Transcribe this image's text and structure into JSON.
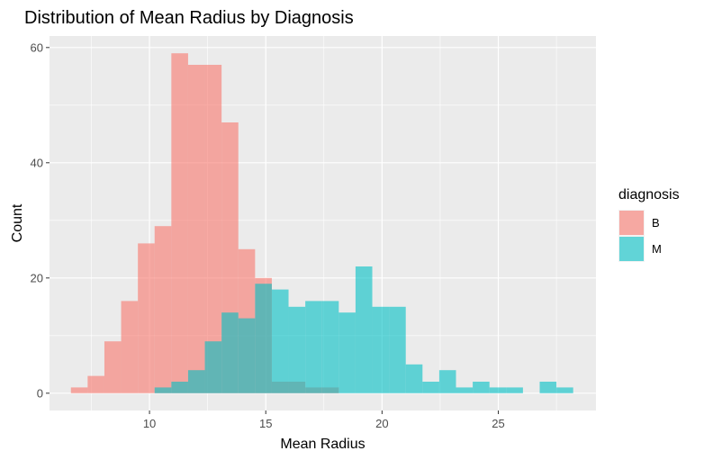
{
  "chart_data": {
    "type": "histogram",
    "title": "Distribution of Mean Radius by Diagnosis",
    "xlabel": "Mean Radius",
    "ylabel": "Count",
    "xlim": [
      5.7,
      29.2
    ],
    "ylim": [
      -3,
      62
    ],
    "x_ticks": [
      10,
      15,
      20,
      25
    ],
    "y_ticks": [
      0,
      20,
      40,
      60
    ],
    "grid": true,
    "bin_width": 0.72,
    "legend": {
      "title": "diagnosis",
      "position": "right"
    },
    "series": [
      {
        "name": "B",
        "color": "#F8766D",
        "opacity": 0.6,
        "bins": [
          {
            "x0": 6.62,
            "count": 1
          },
          {
            "x0": 7.34,
            "count": 3
          },
          {
            "x0": 8.06,
            "count": 9
          },
          {
            "x0": 8.78,
            "count": 16
          },
          {
            "x0": 9.5,
            "count": 26
          },
          {
            "x0": 10.22,
            "count": 29
          },
          {
            "x0": 10.94,
            "count": 59
          },
          {
            "x0": 11.66,
            "count": 57
          },
          {
            "x0": 12.38,
            "count": 57
          },
          {
            "x0": 13.1,
            "count": 47
          },
          {
            "x0": 13.82,
            "count": 25
          },
          {
            "x0": 14.54,
            "count": 20
          },
          {
            "x0": 15.26,
            "count": 2
          },
          {
            "x0": 15.98,
            "count": 2
          },
          {
            "x0": 16.7,
            "count": 1
          },
          {
            "x0": 17.42,
            "count": 1
          }
        ]
      },
      {
        "name": "M",
        "color": "#00BFC4",
        "opacity": 0.6,
        "bins": [
          {
            "x0": 10.22,
            "count": 1
          },
          {
            "x0": 10.94,
            "count": 2
          },
          {
            "x0": 11.66,
            "count": 4
          },
          {
            "x0": 12.38,
            "count": 9
          },
          {
            "x0": 13.1,
            "count": 14
          },
          {
            "x0": 13.82,
            "count": 13
          },
          {
            "x0": 14.54,
            "count": 19
          },
          {
            "x0": 15.26,
            "count": 18
          },
          {
            "x0": 15.98,
            "count": 15
          },
          {
            "x0": 16.7,
            "count": 16
          },
          {
            "x0": 17.42,
            "count": 16
          },
          {
            "x0": 18.14,
            "count": 14
          },
          {
            "x0": 18.86,
            "count": 22
          },
          {
            "x0": 19.58,
            "count": 15
          },
          {
            "x0": 20.3,
            "count": 15
          },
          {
            "x0": 21.02,
            "count": 5
          },
          {
            "x0": 21.74,
            "count": 2
          },
          {
            "x0": 22.46,
            "count": 4
          },
          {
            "x0": 23.18,
            "count": 1
          },
          {
            "x0": 23.9,
            "count": 2
          },
          {
            "x0": 24.62,
            "count": 1
          },
          {
            "x0": 25.34,
            "count": 1
          },
          {
            "x0": 26.06,
            "count": 0
          },
          {
            "x0": 26.78,
            "count": 2
          },
          {
            "x0": 27.5,
            "count": 1
          }
        ]
      }
    ]
  }
}
